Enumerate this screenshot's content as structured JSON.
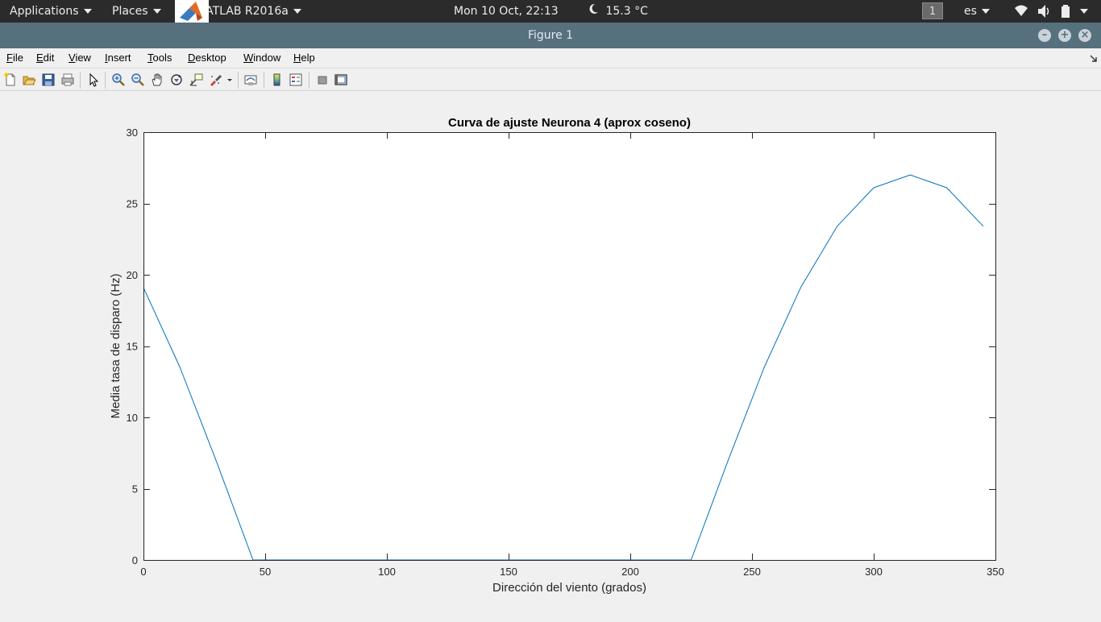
{
  "topbar": {
    "applications": "Applications",
    "places": "Places",
    "app_name": "MATLAB R2016a",
    "clock": "Mon 10 Oct, 22:13",
    "weather": "15.3 °C",
    "workspace": "1",
    "language": "es"
  },
  "window": {
    "title": "Figure 1"
  },
  "menu": [
    "File",
    "Edit",
    "View",
    "Insert",
    "Tools",
    "Desktop",
    "Window",
    "Help"
  ],
  "toolbar": [
    "new-figure-icon",
    "open-file-icon",
    "save-icon",
    "print-icon",
    "edit-plot-icon",
    "zoom-in-icon",
    "zoom-out-icon",
    "pan-icon",
    "rotate-3d-icon",
    "data-cursor-icon",
    "brush-icon",
    "brush-menu-icon",
    "link-plot-icon",
    "insert-colorbar-icon",
    "insert-legend-icon",
    "hide-plot-tools-icon",
    "show-plot-tools-icon"
  ],
  "chart_data": {
    "type": "line",
    "title": "Curva de ajuste Neurona 4 (aprox coseno)",
    "xlabel": "Dirección del viento (grados)",
    "ylabel": "Media tasa de disparo (Hz)",
    "xlim": [
      0,
      350
    ],
    "ylim": [
      0,
      30
    ],
    "xticks": [
      0,
      50,
      100,
      150,
      200,
      250,
      300,
      350
    ],
    "yticks": [
      0,
      5,
      10,
      15,
      20,
      25,
      30
    ],
    "grid": false,
    "line_color": "#0072bd",
    "x": [
      0,
      15,
      30,
      45,
      60,
      75,
      90,
      105,
      120,
      135,
      150,
      165,
      180,
      195,
      210,
      225,
      240,
      255,
      270,
      285,
      300,
      315,
      330,
      345
    ],
    "y": [
      19.1,
      13.5,
      6.9,
      0,
      0,
      0,
      0,
      0,
      0,
      0,
      0,
      0,
      0,
      0,
      0,
      0,
      6.9,
      13.5,
      19.1,
      23.4,
      26.1,
      27.0,
      26.1,
      23.4
    ]
  }
}
